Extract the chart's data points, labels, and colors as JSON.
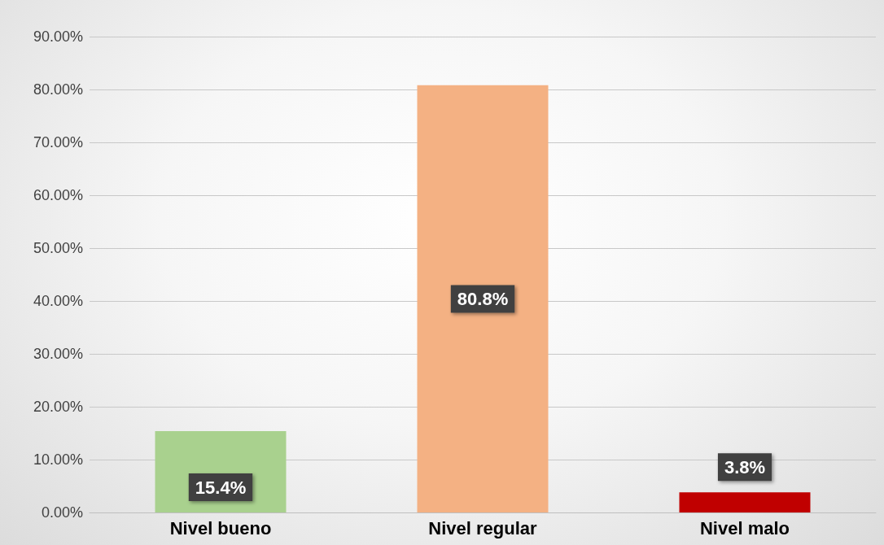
{
  "chart_data": {
    "type": "bar",
    "categories": [
      "Nivel bueno",
      "Nivel regular",
      "Nivel malo"
    ],
    "values": [
      15.4,
      80.8,
      3.8
    ],
    "colors": [
      "#a9d18e",
      "#f4b183",
      "#c00000"
    ],
    "value_labels": [
      "15.4%",
      "80.8%",
      "3.8%"
    ],
    "ylim": [
      0,
      90
    ],
    "yticks": [
      {
        "value": 0,
        "label": "0.00%"
      },
      {
        "value": 10,
        "label": "10.00%"
      },
      {
        "value": 20,
        "label": "20.00%"
      },
      {
        "value": 30,
        "label": "30.00%"
      },
      {
        "value": 40,
        "label": "40.00%"
      },
      {
        "value": 50,
        "label": "50.00%"
      },
      {
        "value": 60,
        "label": "60.00%"
      },
      {
        "value": 70,
        "label": "70.00%"
      },
      {
        "value": 80,
        "label": "80.00%"
      },
      {
        "value": 90,
        "label": "90.00%"
      }
    ],
    "grid": "y"
  }
}
